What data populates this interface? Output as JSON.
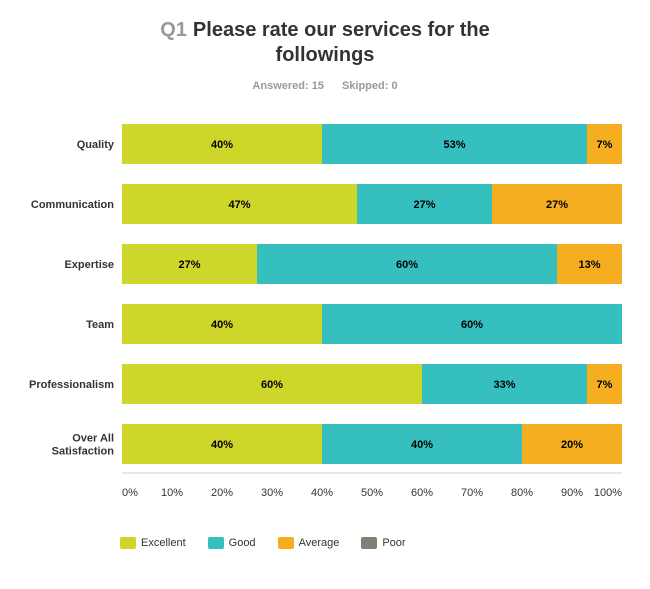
{
  "header": {
    "question_number": "Q1",
    "question_text": "Please rate our services for the followings",
    "answered": "Answered: 15",
    "skipped": "Skipped: 0"
  },
  "colors": {
    "Excellent": "#cdd629",
    "Good": "#35bfbf",
    "Average": "#f5ae1f",
    "Poor": "#7f8175",
    "track": "#efefef",
    "grid": "#ffffff"
  },
  "chart_data": {
    "type": "bar",
    "orientation": "horizontal",
    "stacked": true,
    "title": "Please rate our services for the followings",
    "categories": [
      "Quality",
      "Communication",
      "Expertise",
      "Team",
      "Professionalism",
      "Over All Satisfaction"
    ],
    "series": [
      {
        "name": "Excellent",
        "values": [
          40,
          47,
          27,
          40,
          60,
          40
        ]
      },
      {
        "name": "Good",
        "values": [
          53,
          27,
          60,
          60,
          33,
          40
        ]
      },
      {
        "name": "Average",
        "values": [
          7,
          27,
          13,
          0,
          7,
          20
        ]
      },
      {
        "name": "Poor",
        "values": [
          0,
          0,
          0,
          0,
          0,
          0
        ]
      }
    ],
    "data_labels": [
      [
        "40%",
        "47%",
        "27%",
        "40%",
        "60%",
        "40%"
      ],
      [
        "53%",
        "27%",
        "60%",
        "60%",
        "33%",
        "40%"
      ],
      [
        "7%",
        "27%",
        "13%",
        "",
        "7%",
        "20%"
      ],
      [
        "",
        "",
        "",
        "",
        "",
        ""
      ]
    ],
    "xlim": [
      0,
      100
    ],
    "xticks": [
      "0%",
      "10%",
      "20%",
      "30%",
      "40%",
      "50%",
      "60%",
      "70%",
      "80%",
      "90%",
      "100%"
    ],
    "legend_position": "bottom-left",
    "grid": true
  }
}
